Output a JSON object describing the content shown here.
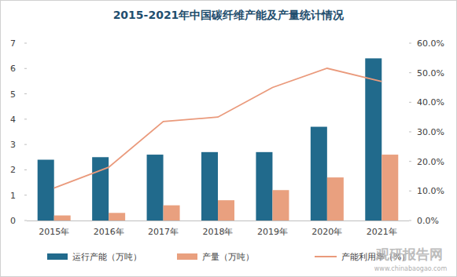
{
  "chart_data": {
    "type": "bar",
    "title": "2015-2021年中国碳纤维产能及产量统计情况",
    "categories": [
      "2015年",
      "2016年",
      "2017年",
      "2018年",
      "2019年",
      "2020年",
      "2021年"
    ],
    "series": [
      {
        "name": "运行产能（万吨）",
        "type": "bar",
        "color": "#216a8c",
        "values": [
          2.4,
          2.5,
          2.6,
          2.7,
          2.7,
          3.7,
          6.4
        ]
      },
      {
        "name": "产量（万吨）",
        "type": "bar",
        "color": "#e9a07f",
        "values": [
          0.2,
          0.3,
          0.6,
          0.8,
          1.2,
          1.7,
          2.6
        ]
      },
      {
        "name": "产能利用率（%）",
        "type": "line",
        "axis": "y2",
        "color": "#ea9a7c",
        "values": [
          11,
          18,
          33.5,
          35,
          45,
          51.5,
          47
        ]
      }
    ],
    "ylim": [
      0,
      7
    ],
    "yticks": [
      0,
      1,
      2,
      3,
      4,
      5,
      6,
      7
    ],
    "y2lim": [
      0,
      60
    ],
    "y2ticks": [
      {
        "value": 0,
        "label": "0.0%"
      },
      {
        "value": 10,
        "label": "10.0%"
      },
      {
        "value": 20,
        "label": "20.0%"
      },
      {
        "value": 30,
        "label": "30.0%"
      },
      {
        "value": 40,
        "label": "40.0%"
      },
      {
        "value": 50,
        "label": "50.0%"
      },
      {
        "value": 60,
        "label": "60.0%"
      }
    ],
    "grid": false,
    "legend": "bottom",
    "annotations": [
      "观研报告网",
      "www.chinabaogao.com"
    ]
  }
}
